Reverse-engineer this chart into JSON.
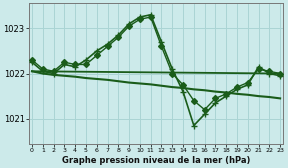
{
  "background_color": "#cceaea",
  "grid_color": "#aad4d4",
  "line_color_dark": "#1a5c1a",
  "line_color_medium": "#2d7a2d",
  "title": "Graphe pression niveau de la mer (hPa)",
  "ylabel_ticks": [
    1021,
    1022,
    1023
  ],
  "xlim": [
    -0.3,
    23.3
  ],
  "ylim": [
    1020.45,
    1023.55
  ],
  "series": [
    {
      "x": [
        0,
        1,
        2,
        3,
        4,
        5,
        6,
        7,
        8,
        9,
        10,
        11,
        12,
        13,
        14,
        15,
        16,
        17,
        18,
        19,
        20,
        21,
        22,
        23
      ],
      "y": [
        1022.25,
        1022.05,
        1022.0,
        1022.2,
        1022.15,
        1022.3,
        1022.5,
        1022.65,
        1022.85,
        1023.1,
        1023.25,
        1023.3,
        1022.7,
        1022.1,
        1021.6,
        1020.85,
        1021.1,
        1021.35,
        1021.5,
        1021.65,
        1021.75,
        1022.15,
        1022.0,
        1021.95
      ],
      "marker": "+",
      "linewidth": 1.2,
      "markersize": 5
    },
    {
      "x": [
        0,
        1,
        2,
        3,
        4,
        5,
        6,
        7,
        8,
        9,
        10,
        11,
        12,
        13,
        14,
        15,
        16,
        17,
        18,
        19,
        20,
        21,
        22,
        23
      ],
      "y": [
        1022.3,
        1022.1,
        1022.05,
        1022.25,
        1022.2,
        1022.2,
        1022.4,
        1022.6,
        1022.8,
        1023.05,
        1023.2,
        1023.25,
        1022.6,
        1022.0,
        1021.75,
        1021.4,
        1021.2,
        1021.45,
        1021.55,
        1021.7,
        1021.8,
        1022.1,
        1022.05,
        1022.0
      ],
      "marker": "D",
      "linewidth": 1.0,
      "markersize": 3
    },
    {
      "x": [
        0,
        1,
        2,
        3,
        4,
        5,
        6,
        7,
        8,
        9,
        10,
        11,
        12,
        13,
        14,
        15,
        16,
        17,
        18,
        19,
        20,
        21,
        22,
        23
      ],
      "y": [
        1022.05,
        1022.0,
        1021.97,
        1021.95,
        1021.93,
        1021.9,
        1021.88,
        1021.86,
        1021.83,
        1021.8,
        1021.78,
        1021.76,
        1021.73,
        1021.7,
        1021.68,
        1021.65,
        1021.63,
        1021.6,
        1021.58,
        1021.55,
        1021.53,
        1021.5,
        1021.48,
        1021.45
      ],
      "marker": null,
      "linewidth": 1.5,
      "markersize": 0
    },
    {
      "x": [
        0,
        23
      ],
      "y": [
        1022.05,
        1022.0
      ],
      "marker": null,
      "linewidth": 1.3,
      "markersize": 0
    }
  ],
  "xtick_labels": [
    "0",
    "1",
    "2",
    "3",
    "4",
    "5",
    "6",
    "7",
    "8",
    "9",
    "10",
    "11",
    "12",
    "13",
    "14",
    "15",
    "16",
    "17",
    "18",
    "19",
    "20",
    "21",
    "22",
    "23"
  ]
}
